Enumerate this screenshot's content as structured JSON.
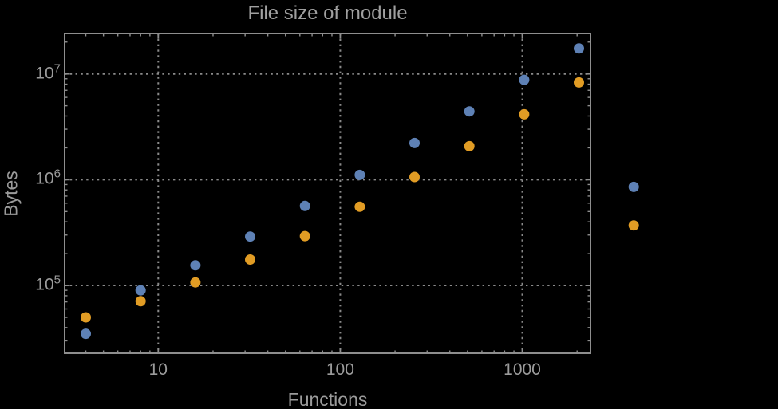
{
  "window": {
    "background": "#000000"
  },
  "chart_data": {
    "type": "scatter",
    "title": "File size of module",
    "xlabel": "Functions",
    "ylabel": "Bytes",
    "x_scale": "log",
    "y_scale": "log",
    "xlim": [
      3.06,
      2370
    ],
    "ylim": [
      22900,
      24100000
    ],
    "grid": "dotted lines at decade ticks only",
    "legend": "none",
    "x": [
      4,
      8,
      16,
      32,
      64,
      128,
      256,
      512,
      1024,
      2048,
      4096
    ],
    "series": [
      {
        "name": "series-1",
        "color": "#5e81b5",
        "values": [
          35000,
          90000,
          155000,
          290000,
          565000,
          1110000,
          2220000,
          4420000,
          8800000,
          17400000,
          855000
        ]
      },
      {
        "name": "series-2",
        "color": "#e19c24",
        "values": [
          50000,
          71000,
          107000,
          176000,
          293000,
          555000,
          1060000,
          2070000,
          4150000,
          8300000,
          370000
        ]
      }
    ],
    "x_ticks": {
      "values": [
        10,
        100,
        1000
      ],
      "labels": [
        "10",
        "100",
        "1000"
      ]
    },
    "y_ticks": {
      "values": [
        100000,
        1000000,
        10000000
      ],
      "labels": [
        {
          "base": "10",
          "exp": "5"
        },
        {
          "base": "10",
          "exp": "6"
        },
        {
          "base": "10",
          "exp": "7"
        }
      ]
    }
  },
  "colors": {
    "background": "#000000",
    "frame": "#8e8e8e",
    "grid": "#8a8a8a",
    "tick": "#8e8e8e",
    "title": "#a0a0a0",
    "label": "#9b9b9b",
    "point_blue": "#5e81b5",
    "point_orange": "#e19c24"
  }
}
